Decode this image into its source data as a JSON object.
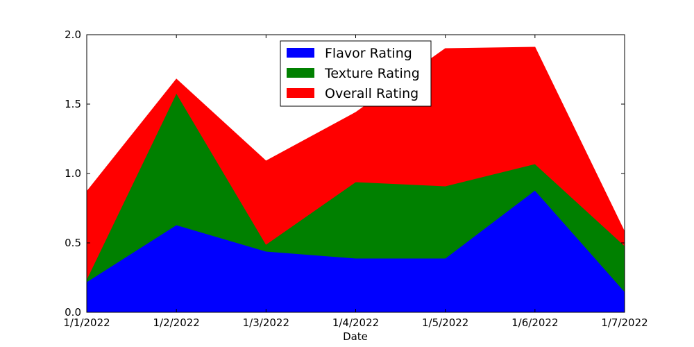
{
  "chart_data": {
    "type": "area",
    "stacked": true,
    "title": "",
    "xlabel": "Date",
    "ylabel": "",
    "categories": [
      "1/1/2022",
      "1/2/2022",
      "1/3/2022",
      "1/4/2022",
      "1/5/2022",
      "1/6/2022",
      "1/7/2022"
    ],
    "ylim": [
      0.0,
      2.0
    ],
    "yticks": [
      "0.0",
      "0.5",
      "1.0",
      "1.5",
      "2.0"
    ],
    "grid": false,
    "legend_position": "top-center",
    "series": [
      {
        "name": "Flavor Rating",
        "color": "#0000ff",
        "values": [
          0.22,
          0.63,
          0.44,
          0.39,
          0.39,
          0.88,
          0.15
        ]
      },
      {
        "name": "Texture Rating",
        "color": "#008000",
        "values": [
          0.02,
          0.95,
          0.05,
          0.55,
          0.52,
          0.19,
          0.33
        ]
      },
      {
        "name": "Overall Rating",
        "color": "#ff0000",
        "values": [
          0.63,
          0.1,
          0.6,
          0.5,
          0.99,
          0.84,
          0.1
        ]
      }
    ]
  }
}
